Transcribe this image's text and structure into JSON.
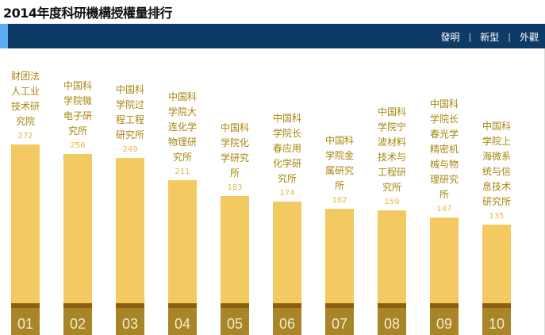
{
  "title": "2014年度科研機構授權量排行",
  "tabs": [
    {
      "label": "發明"
    },
    {
      "label": "新型"
    },
    {
      "label": "外觀"
    }
  ],
  "colors": {
    "bar": "#f3c962",
    "nav": "#0e3a66",
    "rank_bg": "#a88526",
    "label": "#a8850f"
  },
  "chart_data": {
    "type": "bar",
    "title": "2014年度科研機構授權量排行",
    "categories": [
      "财团法人工业技术研究院",
      "中国科学院微电子研究所",
      "中国科学院过程工程研究所",
      "中国科学院大连化学物理研究所",
      "中国科学院化学研究所",
      "中国科学院长春应用化学研究所",
      "中国科学院金属研究所",
      "中国科学院宁波材料技术与工程研究所",
      "中国科学院长春光学精密机械与物理研究所",
      "中国科学院上海微系统与信息技术研究所"
    ],
    "ranks": [
      "01",
      "02",
      "03",
      "04",
      "05",
      "06",
      "07",
      "08",
      "09",
      "10"
    ],
    "values": [
      272,
      256,
      249,
      211,
      183,
      174,
      162,
      159,
      147,
      135
    ],
    "ylim": [
      0,
      272
    ],
    "xlabel": "",
    "ylabel": ""
  }
}
